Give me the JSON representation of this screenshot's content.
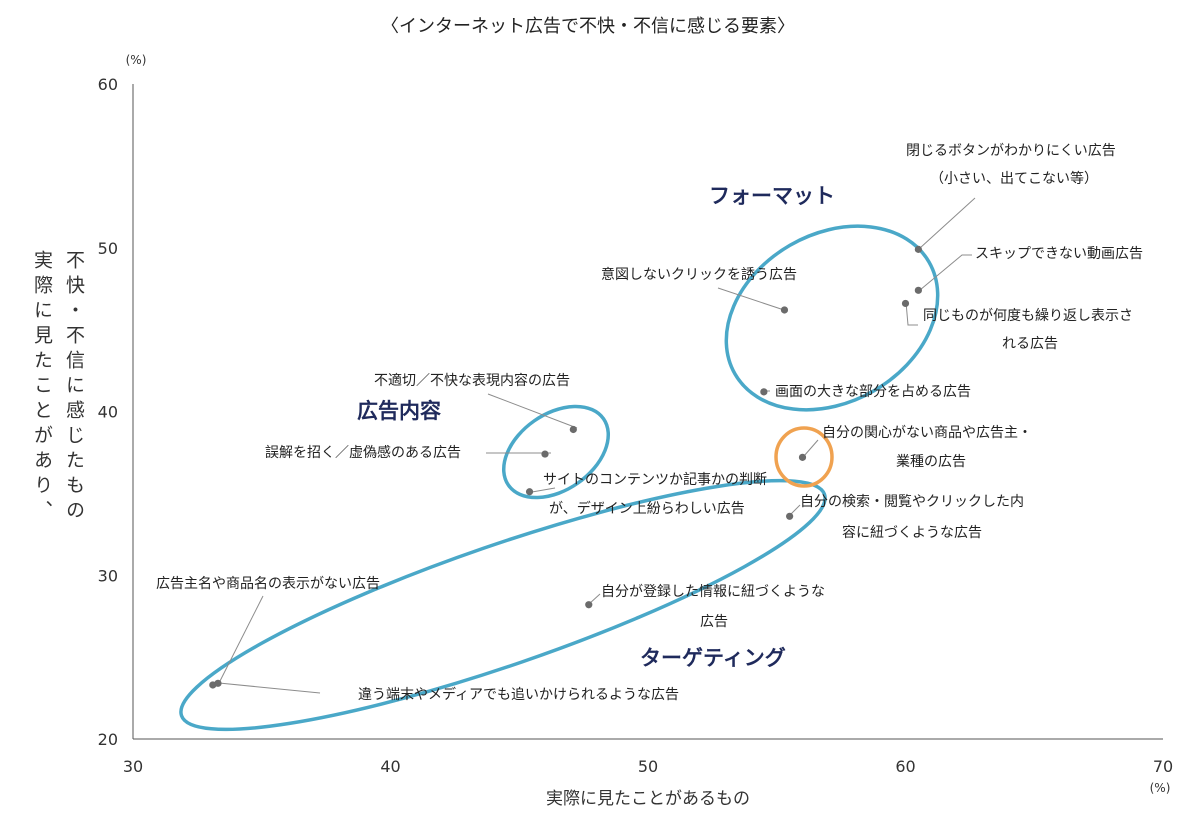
{
  "chart_data": {
    "type": "scatter",
    "title": "〈インターネット広告で不快・不信に感じる要素〉",
    "xlabel": "実際に見たことがあるもの",
    "ylabel_col1": "不快・不信に感じたもの",
    "ylabel_col2": "実際に見たことがあり、",
    "x_unit": "(%)",
    "y_unit": "(%)",
    "xlim": [
      30,
      70
    ],
    "ylim": [
      20,
      60
    ],
    "x_ticks": [
      "30",
      "40",
      "50",
      "60",
      "70"
    ],
    "y_ticks": [
      "20",
      "30",
      "40",
      "50",
      "60"
    ],
    "grid": false,
    "points": [
      {
        "x": 60.5,
        "y": 49.9,
        "label_lines": [
          "閉じるボタンがわかりにくい広告",
          "（小さい、出てこない等）"
        ]
      },
      {
        "x": 60.5,
        "y": 47.4,
        "label_lines": [
          "スキップできない動画広告"
        ]
      },
      {
        "x": 60.0,
        "y": 46.6,
        "label_lines": [
          "同じものが何度も繰り返し表示さ",
          "れる広告"
        ]
      },
      {
        "x": 55.3,
        "y": 46.2,
        "label_lines": [
          "意図しないクリックを誘う広告"
        ]
      },
      {
        "x": 54.5,
        "y": 41.2,
        "label_lines": [
          "画面の大きな部分を占める広告"
        ]
      },
      {
        "x": 47.1,
        "y": 38.9,
        "label_lines": [
          "不適切／不快な表現内容の広告"
        ]
      },
      {
        "x": 46.0,
        "y": 37.4,
        "label_lines": [
          "誤解を招く／虚偽感のある広告"
        ]
      },
      {
        "x": 45.4,
        "y": 35.1,
        "label_lines": [
          "サイトのコンテンツか記事かの判断",
          "が、デザイン上紛らわしい広告"
        ]
      },
      {
        "x": 56.0,
        "y": 37.2,
        "label_lines": [
          "自分の関心がない商品や広告主・",
          "業種の広告"
        ]
      },
      {
        "x": 55.5,
        "y": 33.6,
        "label_lines": [
          "自分の検索・閲覧やクリックした内",
          "容に紐づくような広告"
        ]
      },
      {
        "x": 47.7,
        "y": 28.2,
        "label_lines": [
          "自分が登録した情報に紐づくような",
          "広告"
        ]
      },
      {
        "x": 33.3,
        "y": 23.4,
        "label_lines": [
          "広告主名や商品名の表示がない広告"
        ]
      },
      {
        "x": 33.1,
        "y": 23.3,
        "label_lines": [
          "違う端末やメディアでも追いかけられるような広告"
        ]
      }
    ],
    "groups": [
      {
        "name": "フォーマット"
      },
      {
        "name": "広告内容"
      },
      {
        "name": "ターゲティング"
      }
    ]
  }
}
